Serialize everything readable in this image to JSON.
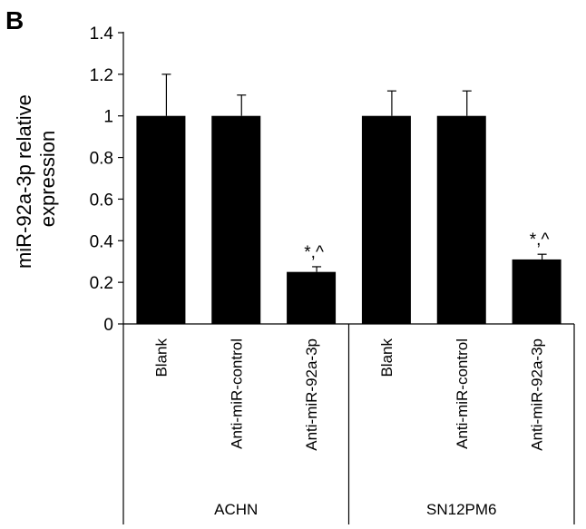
{
  "panel_label": "B",
  "chart_data": {
    "type": "bar",
    "ylabel": "miR-92a-3p relative expression",
    "ylabel_lines": [
      "miR-92a-3p relative",
      "expression"
    ],
    "ylim": [
      0,
      1.4
    ],
    "yticks": [
      "0",
      "0.2",
      "0.4",
      "0.6",
      "0.8",
      "1",
      "1.2",
      "1.4"
    ],
    "ytick_values": [
      0,
      0.2,
      0.4,
      0.6,
      0.8,
      1.0,
      1.2,
      1.4
    ],
    "groups": [
      {
        "name": "ACHN",
        "bars": [
          {
            "category": "Blank",
            "value": 1.0,
            "error": 0.2,
            "annotation": ""
          },
          {
            "category": "Anti-miR-control",
            "value": 1.0,
            "error": 0.1,
            "annotation": ""
          },
          {
            "category": "Anti-miR-92a-3p",
            "value": 0.25,
            "error": 0.025,
            "annotation": "*,^"
          }
        ]
      },
      {
        "name": "SN12PM6",
        "bars": [
          {
            "category": "Blank",
            "value": 1.0,
            "error": 0.12,
            "annotation": ""
          },
          {
            "category": "Anti-miR-control",
            "value": 1.0,
            "error": 0.12,
            "annotation": ""
          },
          {
            "category": "Anti-miR-92a-3p",
            "value": 0.31,
            "error": 0.025,
            "annotation": "*,^"
          }
        ]
      }
    ],
    "bar_color": "#000000",
    "grid": false,
    "legend": "none"
  }
}
